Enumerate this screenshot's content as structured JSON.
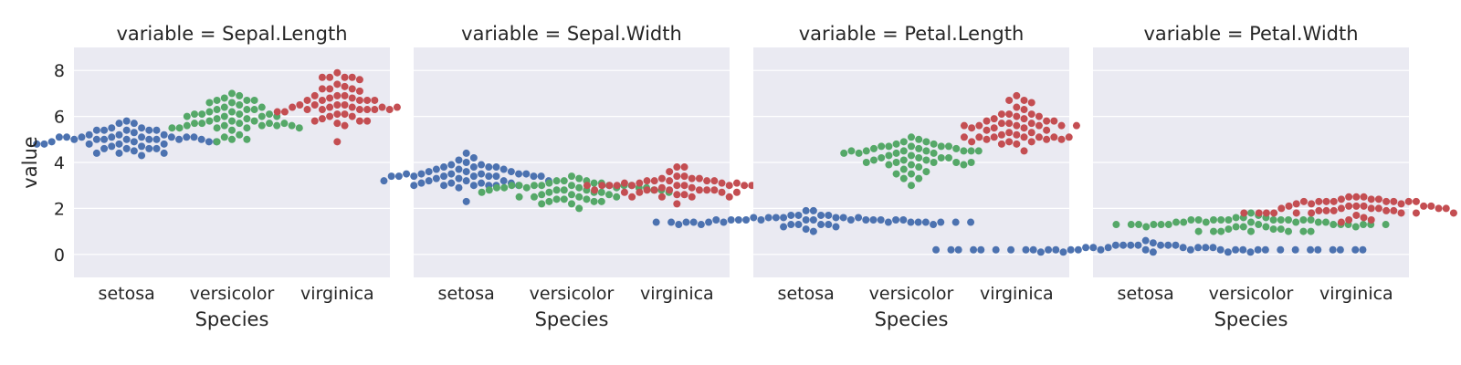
{
  "chart_data": {
    "type": "swarm",
    "facet_variable": "variable",
    "facet_separator": " = ",
    "facets": [
      "Sepal.Length",
      "Sepal.Width",
      "Petal.Length",
      "Petal.Width"
    ],
    "categories": [
      "setosa",
      "versicolor",
      "virginica"
    ],
    "xlabel": "Species",
    "ylabel": "value",
    "ylim": [
      -1,
      9
    ],
    "yticks": [
      0,
      2,
      4,
      6,
      8
    ],
    "grid": true,
    "background": "#eaeaf2",
    "colors": {
      "setosa": "#4c72b0",
      "versicolor": "#55a868",
      "virginica": "#c44e52"
    },
    "data": {
      "Sepal.Length": {
        "setosa": [
          5.1,
          4.9,
          4.7,
          4.6,
          5.0,
          5.4,
          4.6,
          5.0,
          4.4,
          4.9,
          5.4,
          4.8,
          4.8,
          4.3,
          5.8,
          5.7,
          5.4,
          5.1,
          5.7,
          5.1,
          5.4,
          5.1,
          4.6,
          5.1,
          4.8,
          5.0,
          5.0,
          5.2,
          5.2,
          4.7,
          4.8,
          5.4,
          5.2,
          5.5,
          4.9,
          5.0,
          5.5,
          4.9,
          4.4,
          5.1,
          5.0,
          4.5,
          4.4,
          5.0,
          5.1,
          4.8,
          5.1,
          4.6,
          5.3,
          5.0
        ],
        "versicolor": [
          7.0,
          6.4,
          6.9,
          5.5,
          6.5,
          5.7,
          6.3,
          4.9,
          6.6,
          5.2,
          5.0,
          5.9,
          6.0,
          6.1,
          5.6,
          6.7,
          5.6,
          5.8,
          6.2,
          5.6,
          5.9,
          6.1,
          6.3,
          6.1,
          6.4,
          6.6,
          6.8,
          6.7,
          6.0,
          5.7,
          5.5,
          5.5,
          5.8,
          6.0,
          5.4,
          6.0,
          6.7,
          6.3,
          5.6,
          5.5,
          5.5,
          6.1,
          5.8,
          5.0,
          5.6,
          5.7,
          5.7,
          6.2,
          5.1,
          5.7
        ],
        "virginica": [
          6.3,
          5.8,
          7.1,
          6.3,
          6.5,
          7.6,
          4.9,
          7.3,
          6.7,
          7.2,
          6.5,
          6.4,
          6.8,
          5.7,
          5.8,
          6.4,
          6.5,
          7.7,
          7.7,
          6.0,
          6.9,
          5.6,
          7.7,
          6.3,
          6.7,
          7.2,
          6.2,
          6.1,
          6.4,
          7.2,
          7.4,
          7.9,
          6.4,
          6.3,
          6.1,
          7.7,
          6.3,
          6.4,
          6.0,
          6.9,
          6.7,
          6.9,
          5.8,
          6.8,
          6.7,
          6.7,
          6.3,
          6.5,
          6.2,
          5.9
        ]
      },
      "Sepal.Width": {
        "setosa": [
          3.5,
          3.0,
          3.2,
          3.1,
          3.6,
          3.9,
          3.4,
          3.4,
          2.9,
          3.1,
          3.7,
          3.4,
          3.0,
          3.0,
          4.0,
          4.4,
          3.9,
          3.5,
          3.8,
          3.8,
          3.4,
          3.7,
          3.6,
          3.3,
          3.4,
          3.0,
          3.4,
          3.5,
          3.4,
          3.2,
          3.1,
          3.4,
          4.1,
          4.2,
          3.1,
          3.2,
          3.5,
          3.6,
          3.0,
          3.4,
          3.5,
          2.3,
          3.2,
          3.5,
          3.8,
          3.0,
          3.8,
          3.2,
          3.7,
          3.3
        ],
        "versicolor": [
          3.2,
          3.2,
          3.1,
          2.3,
          2.8,
          2.8,
          3.3,
          2.4,
          2.9,
          2.7,
          2.0,
          3.0,
          2.2,
          2.9,
          2.9,
          3.1,
          3.0,
          2.7,
          2.2,
          2.5,
          3.2,
          2.8,
          2.5,
          2.8,
          2.9,
          3.0,
          2.8,
          3.0,
          2.9,
          2.6,
          2.4,
          2.4,
          2.7,
          2.7,
          3.0,
          3.4,
          3.1,
          2.3,
          3.0,
          2.5,
          2.6,
          3.0,
          2.6,
          2.3,
          2.7,
          3.0,
          2.9,
          2.9,
          2.5,
          2.8
        ],
        "virginica": [
          3.3,
          2.7,
          3.0,
          2.9,
          3.0,
          3.0,
          2.5,
          2.9,
          2.5,
          3.6,
          3.2,
          2.7,
          3.0,
          2.5,
          2.8,
          3.2,
          3.0,
          3.8,
          2.6,
          2.2,
          3.2,
          2.8,
          2.8,
          2.7,
          3.3,
          3.2,
          2.8,
          3.0,
          2.8,
          3.0,
          2.8,
          3.8,
          2.8,
          2.8,
          2.6,
          3.0,
          3.4,
          3.1,
          3.0,
          3.1,
          3.1,
          3.1,
          2.7,
          3.2,
          3.3,
          3.0,
          2.5,
          3.0,
          3.4,
          3.0
        ]
      },
      "Petal.Length": {
        "setosa": [
          1.4,
          1.4,
          1.3,
          1.5,
          1.4,
          1.7,
          1.4,
          1.5,
          1.4,
          1.5,
          1.5,
          1.6,
          1.4,
          1.1,
          1.2,
          1.5,
          1.3,
          1.4,
          1.7,
          1.5,
          1.7,
          1.5,
          1.0,
          1.7,
          1.9,
          1.6,
          1.6,
          1.5,
          1.4,
          1.6,
          1.6,
          1.5,
          1.5,
          1.4,
          1.5,
          1.2,
          1.3,
          1.4,
          1.3,
          1.5,
          1.3,
          1.3,
          1.3,
          1.6,
          1.9,
          1.4,
          1.6,
          1.4,
          1.5,
          1.4
        ],
        "versicolor": [
          4.7,
          4.5,
          4.9,
          4.0,
          4.6,
          4.5,
          4.7,
          3.3,
          4.6,
          3.9,
          3.5,
          4.2,
          4.0,
          4.7,
          3.6,
          4.4,
          4.5,
          4.1,
          4.5,
          3.9,
          4.8,
          4.0,
          4.9,
          4.7,
          4.3,
          4.4,
          4.8,
          5.0,
          4.5,
          3.5,
          3.8,
          3.7,
          3.9,
          5.1,
          4.5,
          4.5,
          4.7,
          4.4,
          4.1,
          4.0,
          4.4,
          4.6,
          4.0,
          3.3,
          4.2,
          4.2,
          4.2,
          4.3,
          3.0,
          4.1
        ],
        "virginica": [
          6.0,
          5.1,
          5.9,
          5.6,
          5.8,
          6.6,
          4.5,
          6.3,
          5.8,
          6.1,
          5.1,
          5.3,
          5.5,
          5.0,
          5.1,
          5.3,
          5.5,
          6.7,
          6.9,
          5.0,
          5.7,
          4.9,
          6.7,
          4.9,
          5.7,
          6.0,
          4.8,
          4.9,
          5.6,
          5.8,
          6.1,
          6.4,
          5.6,
          5.1,
          5.6,
          6.1,
          5.6,
          5.5,
          4.8,
          5.4,
          5.6,
          5.1,
          5.1,
          5.9,
          5.7,
          5.2,
          5.0,
          5.2,
          5.4,
          5.1
        ]
      },
      "Petal.Width": {
        "setosa": [
          0.2,
          0.2,
          0.2,
          0.2,
          0.2,
          0.4,
          0.3,
          0.2,
          0.2,
          0.1,
          0.2,
          0.2,
          0.1,
          0.1,
          0.2,
          0.4,
          0.4,
          0.3,
          0.3,
          0.3,
          0.2,
          0.4,
          0.2,
          0.5,
          0.2,
          0.2,
          0.4,
          0.2,
          0.2,
          0.2,
          0.2,
          0.4,
          0.1,
          0.2,
          0.2,
          0.2,
          0.2,
          0.1,
          0.2,
          0.2,
          0.3,
          0.3,
          0.2,
          0.6,
          0.4,
          0.3,
          0.2,
          0.2,
          0.2,
          0.2
        ],
        "versicolor": [
          1.4,
          1.5,
          1.5,
          1.3,
          1.5,
          1.3,
          1.6,
          1.0,
          1.3,
          1.4,
          1.0,
          1.5,
          1.0,
          1.4,
          1.3,
          1.4,
          1.5,
          1.0,
          1.5,
          1.1,
          1.8,
          1.3,
          1.5,
          1.2,
          1.3,
          1.4,
          1.4,
          1.7,
          1.5,
          1.0,
          1.1,
          1.0,
          1.2,
          1.6,
          1.5,
          1.6,
          1.5,
          1.3,
          1.3,
          1.3,
          1.2,
          1.4,
          1.2,
          1.0,
          1.3,
          1.2,
          1.3,
          1.3,
          1.1,
          1.3
        ],
        "virginica": [
          2.5,
          1.9,
          2.1,
          1.8,
          2.2,
          2.1,
          1.7,
          1.8,
          1.8,
          2.5,
          2.0,
          1.9,
          2.1,
          2.0,
          2.4,
          2.3,
          1.8,
          2.2,
          2.3,
          1.5,
          2.3,
          2.0,
          2.0,
          1.8,
          2.1,
          1.8,
          1.8,
          1.8,
          2.1,
          1.6,
          1.9,
          2.0,
          2.2,
          1.5,
          1.4,
          2.3,
          2.4,
          1.8,
          1.8,
          2.1,
          2.4,
          2.3,
          1.9,
          2.3,
          2.5,
          2.3,
          1.9,
          2.0,
          2.3,
          1.8
        ]
      }
    }
  }
}
